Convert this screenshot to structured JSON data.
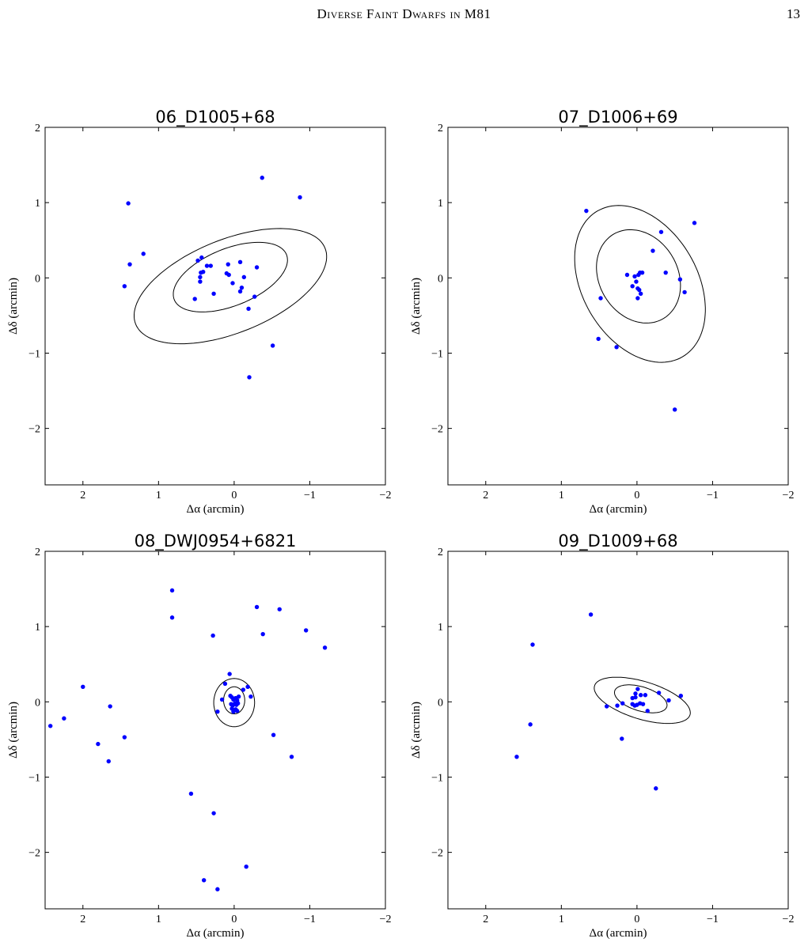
{
  "header": {
    "running_title": "Diverse Faint Dwarfs in M81",
    "page_number": "13"
  },
  "colors": {
    "points": "#0000ff",
    "ellipses": "#000000",
    "axes": "#000000"
  },
  "chart_data": [
    {
      "type": "scatter",
      "title": "06_D1005+68",
      "xlabel": "Δα (arcmin)",
      "ylabel": "Δδ (arcmin)",
      "xlim": [
        2.5,
        -2.0
      ],
      "ylim": [
        -2.75,
        2.0
      ],
      "xticks": [
        2,
        1,
        0,
        -1,
        -2
      ],
      "yticks": [
        2,
        1,
        0,
        -1,
        -2
      ],
      "xtick_labels": [
        "2",
        "1",
        "0",
        "−1",
        "−2"
      ],
      "ytick_labels": [
        "2",
        "1",
        "0",
        "−1",
        "−2"
      ],
      "grid": false,
      "ellipses": [
        {
          "center": [
            0.05,
            0.01
          ],
          "a": 0.8,
          "b": 0.38,
          "angle_deg": -22
        },
        {
          "center": [
            0.05,
            -0.11
          ],
          "a": 1.35,
          "b": 0.62,
          "angle_deg": -22
        }
      ],
      "points": [
        [
          1.4,
          0.99
        ],
        [
          1.38,
          0.18
        ],
        [
          1.2,
          0.32
        ],
        [
          1.45,
          -0.11
        ],
        [
          0.48,
          0.23
        ],
        [
          0.43,
          0.27
        ],
        [
          0.36,
          0.16
        ],
        [
          0.31,
          0.16
        ],
        [
          0.44,
          0.07
        ],
        [
          0.41,
          0.08
        ],
        [
          0.45,
          0.01
        ],
        [
          0.45,
          -0.05
        ],
        [
          0.27,
          -0.21
        ],
        [
          0.52,
          -0.28
        ],
        [
          0.1,
          0.06
        ],
        [
          0.07,
          0.04
        ],
        [
          0.08,
          0.18
        ],
        [
          0.02,
          -0.07
        ],
        [
          -0.08,
          0.21
        ],
        [
          -0.13,
          0.01
        ],
        [
          -0.08,
          -0.18
        ],
        [
          -0.1,
          -0.13
        ],
        [
          -0.3,
          0.14
        ],
        [
          -0.27,
          -0.25
        ],
        [
          -0.19,
          -0.41
        ],
        [
          -0.37,
          1.33
        ],
        [
          -0.87,
          1.07
        ],
        [
          -0.51,
          -0.9
        ],
        [
          -0.2,
          -1.32
        ]
      ]
    },
    {
      "type": "scatter",
      "title": "07_D1006+69",
      "xlabel": "Δα (arcmin)",
      "ylabel": "Δδ (arcmin)",
      "xlim": [
        2.5,
        -2.0
      ],
      "ylim": [
        -2.75,
        2.0
      ],
      "xticks": [
        2,
        1,
        0,
        -1,
        -2
      ],
      "yticks": [
        2,
        1,
        0,
        -1,
        -2
      ],
      "xtick_labels": [
        "2",
        "1",
        "0",
        "−1",
        "−2"
      ],
      "ytick_labels": [
        "2",
        "1",
        "0",
        "−1",
        "−2"
      ],
      "grid": false,
      "ellipses": [
        {
          "center": [
            -0.02,
            0.02
          ],
          "a": 0.65,
          "b": 0.52,
          "angle_deg": 60
        },
        {
          "center": [
            -0.04,
            -0.08
          ],
          "a": 1.12,
          "b": 0.76,
          "angle_deg": 60
        }
      ],
      "points": [
        [
          0.67,
          0.89
        ],
        [
          0.48,
          -0.27
        ],
        [
          0.51,
          -0.81
        ],
        [
          0.27,
          -0.92
        ],
        [
          0.13,
          0.04
        ],
        [
          0.03,
          0.02
        ],
        [
          0.01,
          -0.05
        ],
        [
          -0.02,
          0.04
        ],
        [
          -0.04,
          0.07
        ],
        [
          0.06,
          -0.11
        ],
        [
          -0.01,
          -0.14
        ],
        [
          -0.05,
          -0.21
        ],
        [
          -0.03,
          -0.16
        ],
        [
          -0.01,
          -0.27
        ],
        [
          -0.07,
          0.07
        ],
        [
          -0.21,
          0.36
        ],
        [
          -0.32,
          0.61
        ],
        [
          -0.38,
          0.07
        ],
        [
          -0.57,
          -0.02
        ],
        [
          -0.63,
          -0.19
        ],
        [
          -0.76,
          0.73
        ],
        [
          -0.5,
          -1.75
        ]
      ]
    },
    {
      "type": "scatter",
      "title": "08_DWJ0954+6821",
      "xlabel": "Δα (arcmin)",
      "ylabel": "Δδ (arcmin)",
      "xlim": [
        2.5,
        -2.0
      ],
      "ylim": [
        -2.75,
        2.0
      ],
      "xticks": [
        2,
        1,
        0,
        -1,
        -2
      ],
      "yticks": [
        2,
        1,
        0,
        -1,
        -2
      ],
      "xtick_labels": [
        "2",
        "1",
        "0",
        "−1",
        "−2"
      ],
      "ytick_labels": [
        "2",
        "1",
        "0",
        "−1",
        "−2"
      ],
      "grid": false,
      "ellipses": [
        {
          "center": [
            0.0,
            0.02
          ],
          "a": 0.18,
          "b": 0.14,
          "angle_deg": 90
        },
        {
          "center": [
            0.0,
            -0.01
          ],
          "a": 0.32,
          "b": 0.27,
          "angle_deg": 90
        }
      ],
      "points": [
        [
          0.82,
          1.48
        ],
        [
          0.82,
          1.12
        ],
        [
          0.28,
          0.88
        ],
        [
          -0.3,
          1.26
        ],
        [
          -0.6,
          1.23
        ],
        [
          -0.38,
          0.9
        ],
        [
          -0.95,
          0.95
        ],
        [
          -1.2,
          0.72
        ],
        [
          2.0,
          0.2
        ],
        [
          1.64,
          -0.06
        ],
        [
          2.25,
          -0.22
        ],
        [
          2.43,
          -0.32
        ],
        [
          1.8,
          -0.56
        ],
        [
          1.45,
          -0.47
        ],
        [
          1.66,
          -0.79
        ],
        [
          0.06,
          0.37
        ],
        [
          0.12,
          0.24
        ],
        [
          -0.18,
          0.2
        ],
        [
          -0.12,
          0.16
        ],
        [
          -0.22,
          0.07
        ],
        [
          0.16,
          0.03
        ],
        [
          0.22,
          -0.13
        ],
        [
          0.05,
          0.08
        ],
        [
          0.03,
          0.06
        ],
        [
          0.01,
          0.03
        ],
        [
          -0.02,
          0.05
        ],
        [
          -0.04,
          0.02
        ],
        [
          -0.06,
          0.07
        ],
        [
          0.04,
          -0.03
        ],
        [
          0.02,
          -0.05
        ],
        [
          -0.01,
          -0.02
        ],
        [
          -0.03,
          -0.04
        ],
        [
          -0.05,
          -0.02
        ],
        [
          0.03,
          -0.09
        ],
        [
          -0.02,
          -0.1
        ],
        [
          0.01,
          -0.13
        ],
        [
          -0.04,
          -0.12
        ],
        [
          -0.52,
          -0.44
        ],
        [
          -0.76,
          -0.73
        ],
        [
          0.57,
          -1.22
        ],
        [
          0.27,
          -1.48
        ],
        [
          0.4,
          -2.37
        ],
        [
          0.22,
          -2.49
        ],
        [
          -0.16,
          -2.19
        ]
      ]
    },
    {
      "type": "scatter",
      "title": "09_D1009+68",
      "xlabel": "Δα (arcmin)",
      "ylabel": "Δδ (arcmin)",
      "xlim": [
        2.5,
        -2.0
      ],
      "ylim": [
        -2.75,
        2.0
      ],
      "xticks": [
        2,
        1,
        0,
        -1,
        -2
      ],
      "yticks": [
        2,
        1,
        0,
        -1,
        -2
      ],
      "xtick_labels": [
        "2",
        "1",
        "0",
        "−1",
        "−2"
      ],
      "ytick_labels": [
        "2",
        "1",
        "0",
        "−1",
        "−2"
      ],
      "grid": false,
      "ellipses": [
        {
          "center": [
            -0.05,
            0.04
          ],
          "a": 0.36,
          "b": 0.16,
          "angle_deg": 17
        },
        {
          "center": [
            -0.07,
            0.02
          ],
          "a": 0.66,
          "b": 0.25,
          "angle_deg": 17
        }
      ],
      "points": [
        [
          0.61,
          1.16
        ],
        [
          1.38,
          0.76
        ],
        [
          1.41,
          -0.3
        ],
        [
          1.59,
          -0.73
        ],
        [
          0.2,
          -0.49
        ],
        [
          -0.25,
          -1.15
        ],
        [
          0.26,
          -0.05
        ],
        [
          0.4,
          -0.06
        ],
        [
          0.19,
          -0.02
        ],
        [
          0.06,
          0.05
        ],
        [
          0.02,
          0.11
        ],
        [
          -0.01,
          0.17
        ],
        [
          -0.05,
          0.09
        ],
        [
          -0.11,
          0.09
        ],
        [
          0.02,
          0.06
        ],
        [
          0.06,
          -0.03
        ],
        [
          0.03,
          -0.05
        ],
        [
          0.0,
          -0.04
        ],
        [
          -0.04,
          -0.02
        ],
        [
          -0.08,
          -0.03
        ],
        [
          -0.14,
          -0.12
        ],
        [
          -0.29,
          0.12
        ],
        [
          -0.42,
          0.02
        ],
        [
          -0.58,
          0.08
        ]
      ]
    }
  ]
}
